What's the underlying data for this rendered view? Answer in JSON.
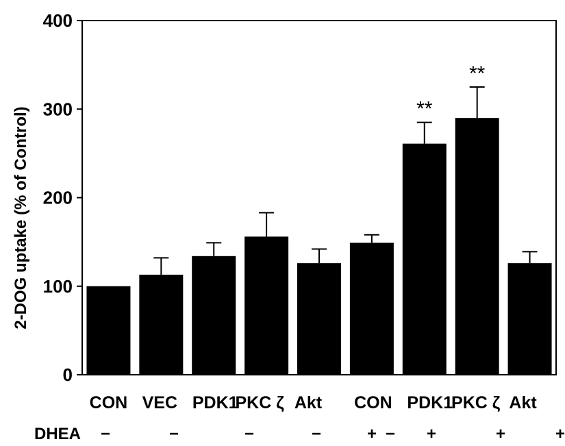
{
  "chart_data": {
    "type": "bar",
    "title": "",
    "xlabel": "",
    "ylabel": "2-DOG uptake (% of Control)",
    "ylim": [
      0,
      400
    ],
    "yticks": [
      "0",
      "100",
      "200",
      "300",
      "400"
    ],
    "grid": false,
    "legend": "none",
    "bar_color": "#000000",
    "categories": [
      "CON",
      "VEC",
      "PDK1",
      "PKC ζ",
      "Akt",
      "CON",
      "PDK1",
      "PKC ζ",
      "Akt"
    ],
    "values": [
      100,
      113,
      134,
      156,
      126,
      149,
      261,
      290,
      126
    ],
    "error_upper": [
      0,
      19,
      15,
      27,
      16,
      9,
      24,
      35,
      13
    ],
    "significance": [
      "",
      "",
      "",
      "",
      "",
      "",
      "**",
      "**",
      ""
    ],
    "dhea_label": "DHEA",
    "dhea_marks": [
      "−",
      "−",
      "−",
      "−",
      "+",
      "−",
      "+",
      "+",
      "+"
    ]
  }
}
